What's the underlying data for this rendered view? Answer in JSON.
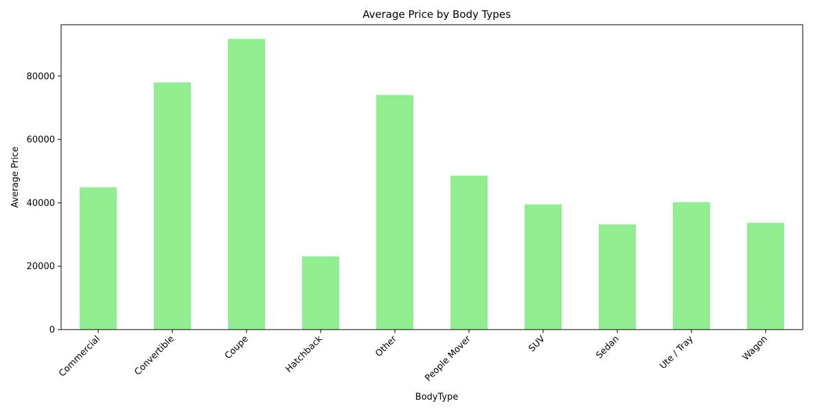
{
  "chart_data": {
    "type": "bar",
    "title": "Average Price by Body Types",
    "xlabel": "BodyType",
    "ylabel": "Average Price",
    "categories": [
      "Commercial",
      "Convertible",
      "Coupe",
      "Hatchback",
      "Other",
      "People Mover",
      "SUV",
      "Sedan",
      "Ute / Tray",
      "Wagon"
    ],
    "values": [
      44900,
      78000,
      91700,
      23100,
      74000,
      48600,
      39500,
      33200,
      40200,
      33700
    ],
    "ylim": [
      0,
      96200
    ],
    "yticks": [
      0,
      20000,
      40000,
      60000,
      80000
    ],
    "ytick_labels": [
      "0",
      "20000",
      "40000",
      "60000",
      "80000"
    ],
    "bar_color": "#90ee90",
    "grid": false,
    "legend": "none"
  }
}
